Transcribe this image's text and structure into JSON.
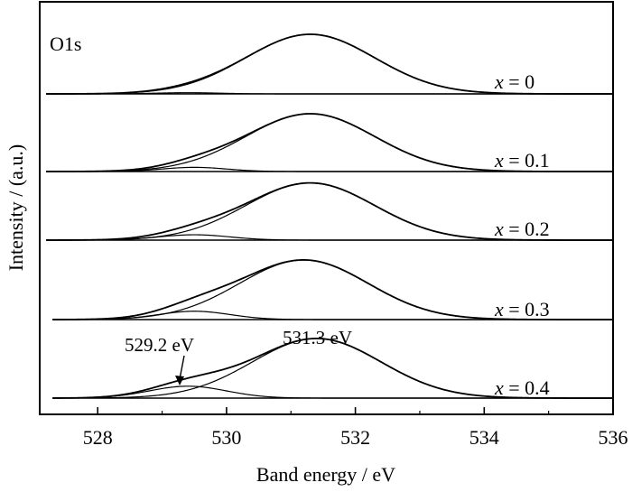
{
  "chart_data": {
    "type": "line",
    "title": "",
    "panel_label": "O1s",
    "xlabel": "Band energy / eV",
    "ylabel": "Intensity / (a.u.)",
    "xlim": [
      527.1,
      536
    ],
    "x_ticks": [
      528,
      530,
      532,
      534,
      536
    ],
    "x_tick_labels": [
      "528",
      "530",
      "532",
      "534",
      "536"
    ],
    "grid": false,
    "stacked_offset": true,
    "series": [
      {
        "label_var": "x",
        "label_eq": " = 0",
        "x_start": 527.2,
        "main_peak": {
          "center": 531.3,
          "width": 1.0,
          "height": 1.0
        },
        "minor_peak": {
          "center": 529.4,
          "width": 0.5,
          "height": 0.02
        }
      },
      {
        "label_var": "x",
        "label_eq": " = 0.1",
        "x_start": 527.2,
        "main_peak": {
          "center": 531.3,
          "width": 1.0,
          "height": 0.97
        },
        "minor_peak": {
          "center": 529.5,
          "width": 0.5,
          "height": 0.07
        }
      },
      {
        "label_var": "x",
        "label_eq": " = 0.2",
        "x_start": 527.2,
        "main_peak": {
          "center": 531.3,
          "width": 1.0,
          "height": 0.96
        },
        "minor_peak": {
          "center": 529.5,
          "width": 0.55,
          "height": 0.09
        }
      },
      {
        "label_var": "x",
        "label_eq": " = 0.3",
        "x_start": 527.3,
        "main_peak": {
          "center": 531.2,
          "width": 1.0,
          "height": 1.0
        },
        "minor_peak": {
          "center": 529.5,
          "width": 0.55,
          "height": 0.14
        }
      },
      {
        "label_var": "x",
        "label_eq": " = 0.4",
        "x_start": 527.3,
        "main_peak": {
          "center": 531.4,
          "width": 1.0,
          "height": 1.0
        },
        "minor_peak": {
          "center": 529.4,
          "width": 0.6,
          "height": 0.2
        }
      }
    ],
    "annotations": [
      {
        "text": "529.2 eV",
        "x": 529.2,
        "arrow": true
      },
      {
        "text": "531.3 eV",
        "x": 531.3,
        "arrow": false
      }
    ]
  }
}
